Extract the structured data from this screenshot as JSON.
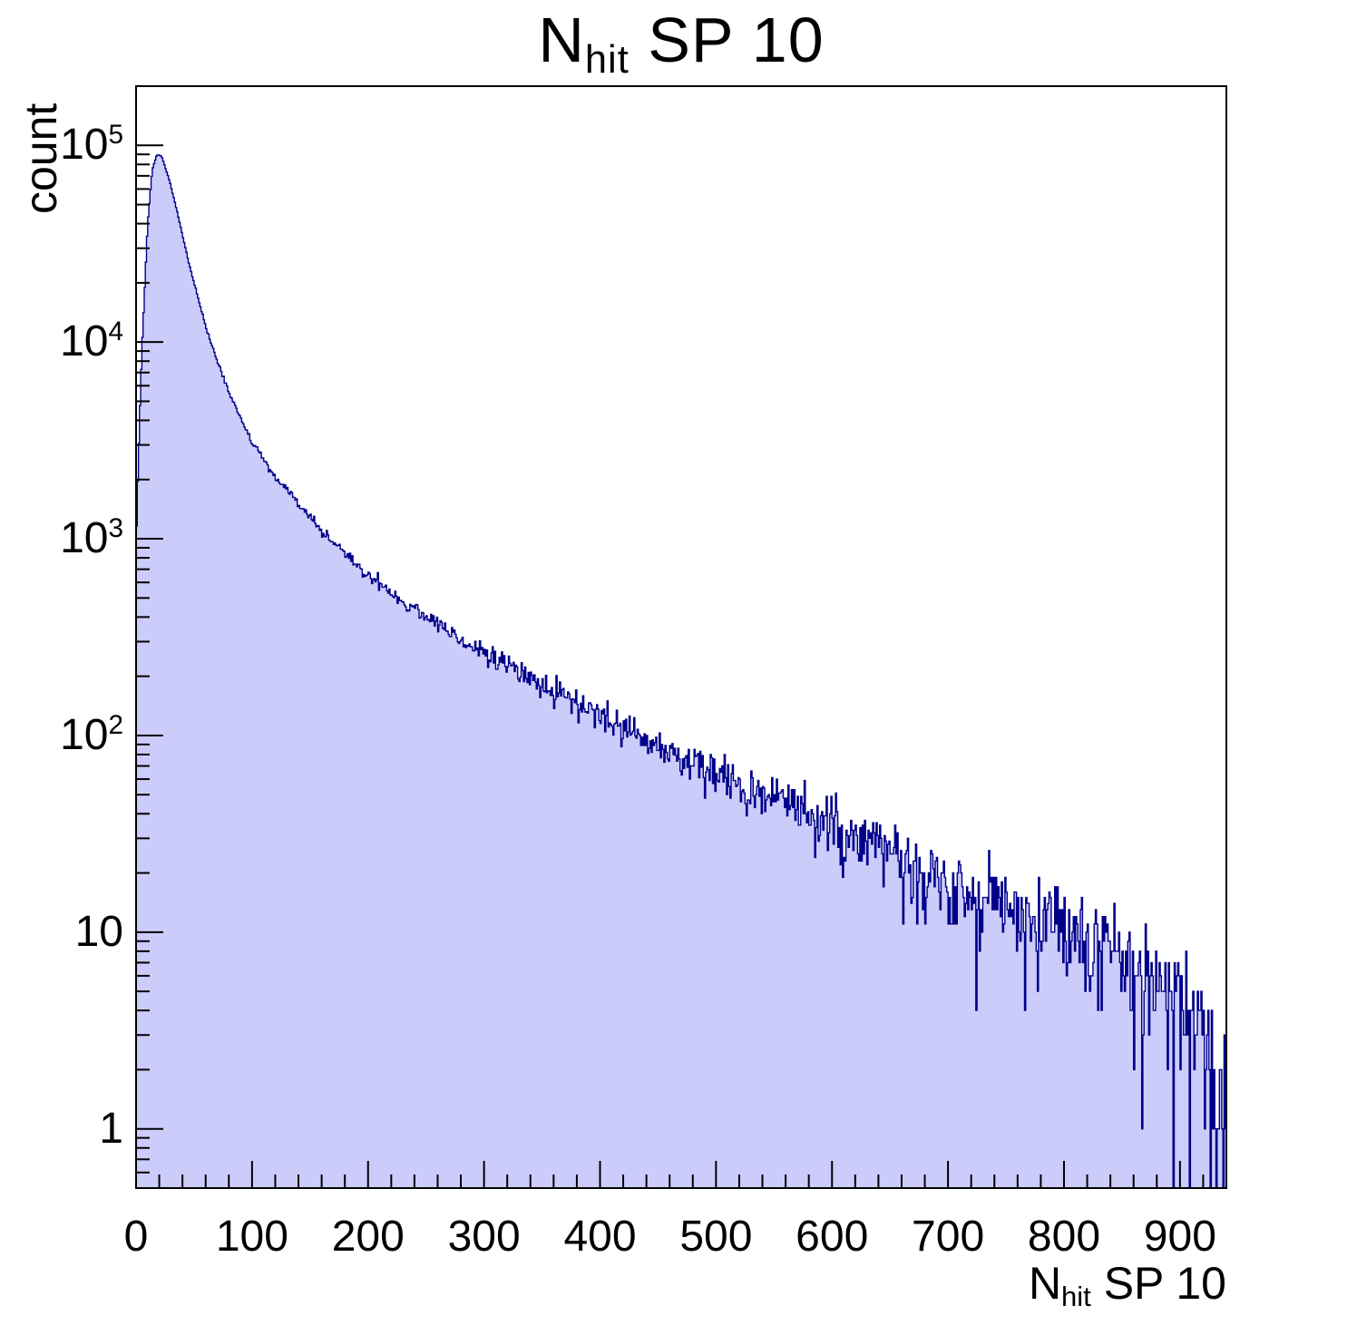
{
  "title": {
    "prefix": "N",
    "sub": "hit",
    "suffix": " SP 10"
  },
  "y_axis": {
    "label": "count"
  },
  "x_axis": {
    "prefix": "N",
    "sub": "hit",
    "suffix": " SP 10"
  },
  "chart_data": {
    "type": "area",
    "title": "N_hit SP 10",
    "xlabel": "N_hit SP 10",
    "ylabel": "count",
    "x_range": [
      0,
      940
    ],
    "y_range": [
      0.5,
      200000
    ],
    "y_scale": "log",
    "grid": false,
    "legend": "none",
    "x_ticks": [
      0,
      100,
      200,
      300,
      400,
      500,
      600,
      700,
      800,
      900
    ],
    "x_minor_step": 20,
    "y_tick_exponents": [
      0,
      1,
      2,
      3,
      4,
      5
    ],
    "bins": 940,
    "bin_width": 1,
    "control_points": {
      "x": [
        0,
        2,
        5,
        10,
        14,
        18,
        22,
        26,
        30,
        35,
        40,
        45,
        50,
        55,
        60,
        70,
        80,
        90,
        100,
        110,
        120,
        130,
        140,
        150,
        160,
        170,
        180,
        190,
        200,
        215,
        230,
        245,
        260,
        280,
        300,
        320,
        340,
        360,
        380,
        400,
        420,
        440,
        460,
        480,
        500,
        520,
        540,
        555,
        570,
        590,
        610,
        630,
        650,
        670,
        690,
        710,
        730,
        750,
        770,
        790,
        810,
        830,
        850,
        870,
        890,
        905,
        915,
        925,
        933,
        940
      ],
      "count": [
        900,
        2500,
        9000,
        40000,
        75000,
        90000,
        88000,
        75000,
        62000,
        47000,
        35000,
        26000,
        20000,
        15500,
        12000,
        8000,
        5600,
        4100,
        3100,
        2500,
        2050,
        1750,
        1500,
        1280,
        1100,
        960,
        850,
        740,
        650,
        560,
        480,
        420,
        370,
        310,
        260,
        225,
        195,
        168,
        145,
        123,
        108,
        96,
        83,
        72,
        63,
        54,
        50,
        52,
        44,
        37,
        32,
        28,
        25,
        22,
        19,
        17,
        15,
        13.5,
        12,
        10.5,
        9.5,
        8.5,
        7,
        6,
        5,
        4,
        3,
        2,
        1.3,
        1.0
      ]
    },
    "noise": {
      "model": "poisson",
      "seed": 12345
    },
    "fill_color": "#ccccfa",
    "line_color": "#00008b",
    "frame_color": "#000000"
  }
}
